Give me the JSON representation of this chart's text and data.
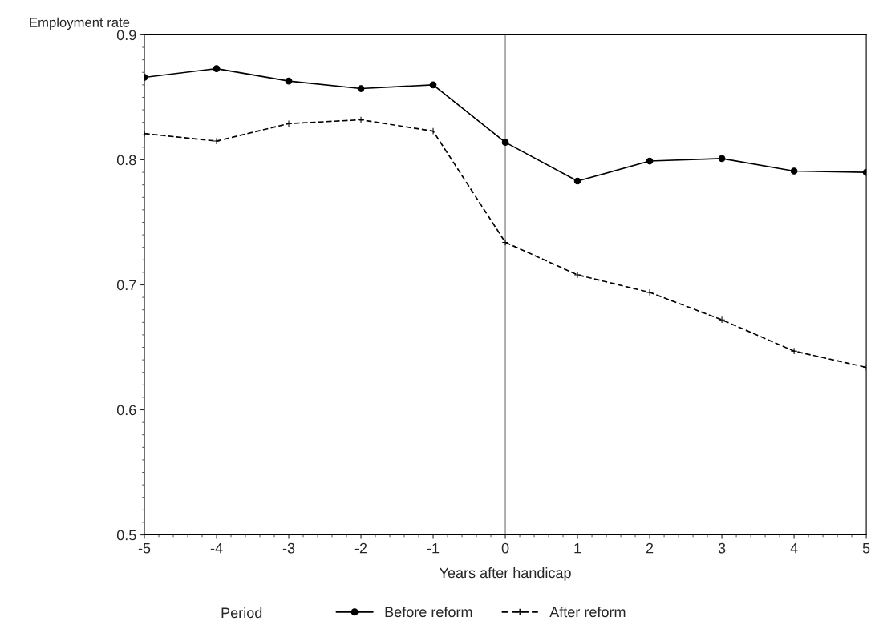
{
  "chart_data": {
    "type": "line",
    "xlabel": "Years after handicap",
    "ylabel": "Employment rate",
    "legend_title": "Period",
    "x": [
      -5,
      -4,
      -3,
      -2,
      -1,
      0,
      1,
      2,
      3,
      4,
      5
    ],
    "series": [
      {
        "name": "Before reform",
        "color": "#000000",
        "marker": "circle",
        "line_style": "solid",
        "values": [
          0.866,
          0.873,
          0.863,
          0.857,
          0.86,
          0.814,
          0.783,
          0.799,
          0.801,
          0.791,
          0.79
        ]
      },
      {
        "name": "After reform",
        "color": "#000000",
        "marker": "cross",
        "line_style": "dashed",
        "values": [
          0.821,
          0.815,
          0.829,
          0.832,
          0.823,
          0.734,
          0.708,
          0.694,
          0.672,
          0.647,
          0.634
        ]
      }
    ],
    "xlim": [
      -5,
      5
    ],
    "xticks": [
      -5,
      -4,
      -3,
      -2,
      -1,
      0,
      1,
      2,
      3,
      4,
      5
    ],
    "ylim": [
      0.5,
      0.9
    ],
    "yticks": [
      0.5,
      0.6,
      0.7,
      0.8,
      0.9
    ],
    "ref_lines": [
      {
        "axis": "x",
        "value": 0,
        "color": "#808080"
      }
    ],
    "grid": false,
    "legend": "bottom"
  }
}
